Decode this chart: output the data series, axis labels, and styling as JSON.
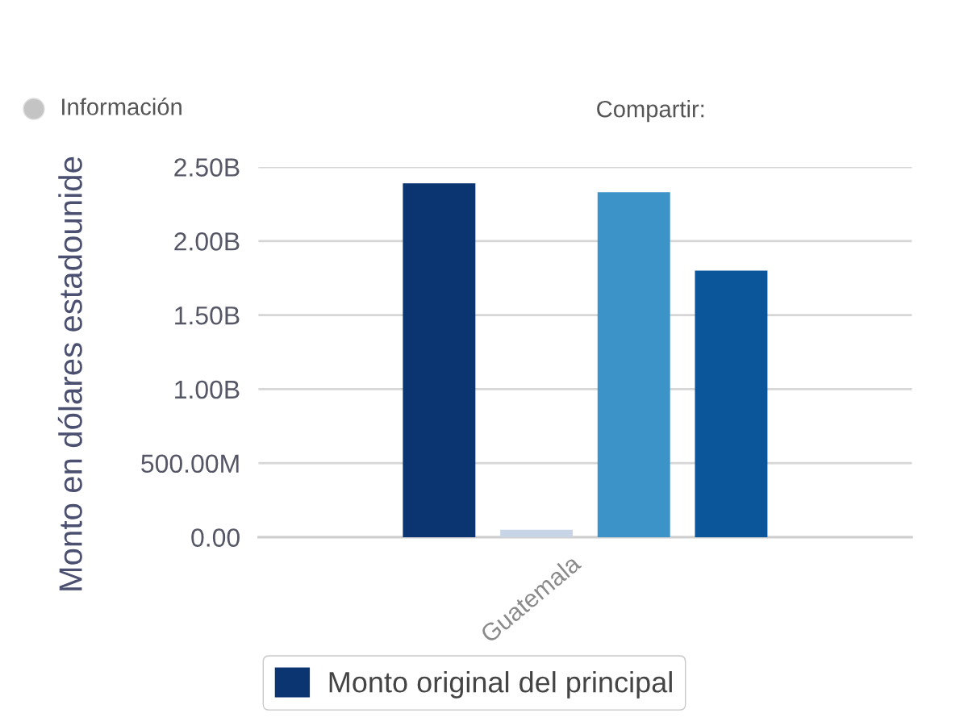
{
  "chart_data": {
    "type": "bar",
    "ylabel": "Monto en dólares estadounide",
    "categories": [
      "Guatemala"
    ],
    "series": [
      {
        "name": "Monto original del principal",
        "color": "#0b3570",
        "values": [
          2390000000
        ]
      },
      {
        "color": "#c8d5e6",
        "values": [
          50000000
        ]
      },
      {
        "color": "#3c93c7",
        "values": [
          2330000000
        ]
      },
      {
        "color": "#0b559b",
        "values": [
          1800000000
        ]
      }
    ],
    "ylim": [
      0,
      2500000000
    ],
    "yticks": [
      {
        "value": 0,
        "label": "0.00"
      },
      {
        "value": 500000000,
        "label": "500.00M"
      },
      {
        "value": 1000000000,
        "label": "1.00B"
      },
      {
        "value": 1500000000,
        "label": "1.50B"
      },
      {
        "value": 2000000000,
        "label": "2.00B"
      },
      {
        "value": 2500000000,
        "label": "2.50B"
      }
    ],
    "grid": "y",
    "legend": "bottom",
    "annotations": [
      "Información",
      "Compartir:"
    ]
  }
}
